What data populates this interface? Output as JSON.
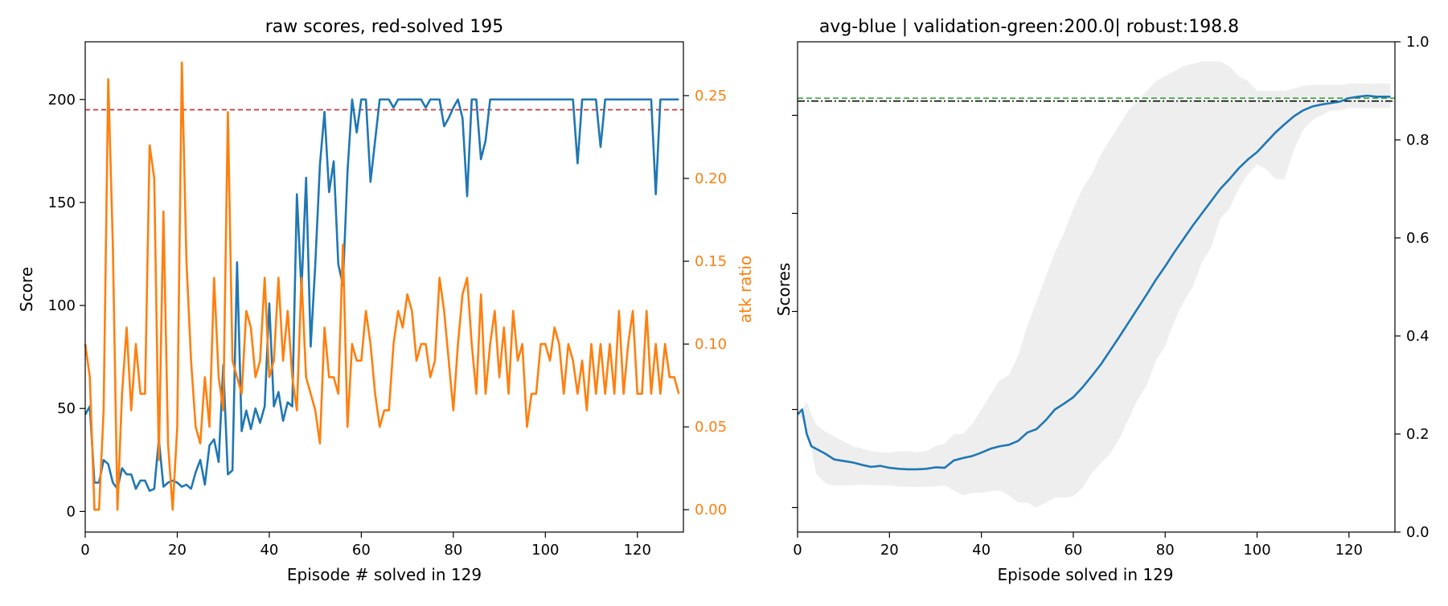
{
  "chart_data": [
    {
      "type": "line",
      "title": "raw scores, red-solved 195",
      "xlabel": "Episode # solved in 129",
      "ylabel": "Score",
      "y2label": "atk ratio",
      "xlim": [
        0,
        130
      ],
      "ylim": [
        -10,
        228
      ],
      "y2lim": [
        -0.0135,
        0.2825
      ],
      "xticks": [
        0,
        20,
        40,
        60,
        80,
        100,
        120
      ],
      "yticks": [
        0,
        50,
        100,
        150,
        200
      ],
      "y2ticks": [
        "0.00",
        "0.05",
        "0.10",
        "0.15",
        "0.20",
        "0.25"
      ],
      "threshold": {
        "value": 195,
        "color": "#d62728",
        "style": "dashed"
      },
      "colors": {
        "score": "#1f77b4",
        "atk_ratio": "#ff7f0e"
      },
      "series": [
        {
          "axis": "left",
          "values": [
            47,
            51,
            14,
            14,
            25,
            23,
            14,
            11,
            21,
            18,
            18,
            11,
            15,
            15,
            10,
            11,
            35,
            12,
            14,
            15,
            14,
            12,
            13,
            11,
            19,
            25,
            13,
            32,
            35,
            24,
            71,
            18,
            20,
            121,
            39,
            49,
            40,
            50,
            43,
            51,
            101,
            51,
            58,
            44,
            53,
            51,
            154,
            107,
            162,
            80,
            120,
            168,
            194,
            155,
            170,
            120,
            110,
            165,
            200,
            184,
            200,
            200,
            160,
            180,
            200,
            200,
            200,
            196,
            200,
            200,
            200,
            200,
            200,
            200,
            196,
            200,
            200,
            200,
            187,
            191,
            196,
            200,
            191,
            153,
            200,
            200,
            171,
            180,
            200,
            200,
            200,
            200,
            200,
            200,
            200,
            200,
            200,
            200,
            200,
            200,
            200,
            200,
            200,
            200,
            200,
            200,
            200,
            169,
            200,
            200,
            200,
            200,
            177,
            200,
            200,
            200,
            200,
            200,
            200,
            200,
            200,
            200,
            200,
            200,
            154,
            200,
            200,
            200,
            200,
            200
          ]
        },
        {
          "axis": "right",
          "values": [
            0.1,
            0.08,
            0.0,
            0.0,
            0.06,
            0.26,
            0.16,
            0.0,
            0.07,
            0.11,
            0.06,
            0.1,
            0.07,
            0.07,
            0.22,
            0.2,
            0.03,
            0.18,
            0.04,
            0.0,
            0.05,
            0.27,
            0.15,
            0.09,
            0.05,
            0.04,
            0.08,
            0.05,
            0.14,
            0.08,
            0.06,
            0.24,
            0.09,
            0.08,
            0.07,
            0.12,
            0.11,
            0.08,
            0.09,
            0.14,
            0.08,
            0.09,
            0.14,
            0.09,
            0.12,
            0.08,
            0.06,
            0.14,
            0.08,
            0.07,
            0.06,
            0.04,
            0.11,
            0.08,
            0.08,
            0.07,
            0.16,
            0.05,
            0.1,
            0.09,
            0.09,
            0.12,
            0.1,
            0.07,
            0.05,
            0.06,
            0.06,
            0.1,
            0.12,
            0.11,
            0.13,
            0.12,
            0.09,
            0.1,
            0.1,
            0.08,
            0.09,
            0.14,
            0.12,
            0.09,
            0.06,
            0.1,
            0.13,
            0.14,
            0.1,
            0.07,
            0.13,
            0.07,
            0.1,
            0.12,
            0.08,
            0.11,
            0.07,
            0.12,
            0.09,
            0.1,
            0.05,
            0.07,
            0.07,
            0.1,
            0.1,
            0.09,
            0.11,
            0.1,
            0.07,
            0.1,
            0.09,
            0.07,
            0.09,
            0.06,
            0.1,
            0.07,
            0.1,
            0.07,
            0.1,
            0.07,
            0.12,
            0.07,
            0.1,
            0.12,
            0.07,
            0.07,
            0.12,
            0.07,
            0.1,
            0.07,
            0.1,
            0.08,
            0.08,
            0.07
          ]
        }
      ]
    },
    {
      "type": "line",
      "title": "avg-blue | validation-green:200.0| robust:198.8",
      "xlabel": "Episode solved in 129",
      "ylabel": "Scores",
      "xlim": [
        0,
        130
      ],
      "ylim": [
        0,
        1
      ],
      "y2ticks": [
        "0.0",
        "0.2",
        "0.4",
        "0.6",
        "0.8",
        "1.0"
      ],
      "xticks": [
        0,
        20,
        40,
        60,
        80,
        100,
        120
      ],
      "reference_lines": [
        {
          "name": "validation",
          "value": 0.885,
          "color": "#2ca02c",
          "style": "dashed"
        },
        {
          "name": "robust",
          "value": 0.879,
          "color": "#000000",
          "style": "dashdot"
        }
      ],
      "colors": {
        "avg": "#1f77b4",
        "band": "#eeeeee"
      },
      "series": [
        {
          "name": "avg",
          "x": [
            0,
            1,
            2,
            3,
            4,
            6,
            8,
            10,
            12,
            14,
            16,
            18,
            20,
            22,
            24,
            26,
            28,
            30,
            32,
            34,
            36,
            38,
            40,
            42,
            44,
            46,
            48,
            50,
            52,
            54,
            56,
            58,
            60,
            62,
            64,
            66,
            68,
            70,
            72,
            74,
            76,
            78,
            80,
            82,
            84,
            86,
            88,
            90,
            92,
            94,
            96,
            98,
            100,
            102,
            104,
            106,
            108,
            110,
            112,
            114,
            116,
            118,
            120,
            122,
            124,
            126,
            128,
            129
          ],
          "values": [
            0.24,
            0.25,
            0.2,
            0.175,
            0.17,
            0.16,
            0.148,
            0.145,
            0.142,
            0.137,
            0.133,
            0.135,
            0.131,
            0.129,
            0.128,
            0.128,
            0.129,
            0.132,
            0.131,
            0.146,
            0.151,
            0.155,
            0.162,
            0.17,
            0.175,
            0.178,
            0.186,
            0.203,
            0.21,
            0.228,
            0.25,
            0.262,
            0.275,
            0.295,
            0.318,
            0.342,
            0.37,
            0.398,
            0.427,
            0.456,
            0.485,
            0.515,
            0.542,
            0.571,
            0.598,
            0.625,
            0.65,
            0.675,
            0.7,
            0.72,
            0.742,
            0.76,
            0.775,
            0.795,
            0.815,
            0.832,
            0.848,
            0.86,
            0.868,
            0.872,
            0.875,
            0.878,
            0.885,
            0.888,
            0.89,
            0.888,
            0.888,
            0.888
          ],
          "lower": [
            0.24,
            0.23,
            0.2,
            0.17,
            0.12,
            0.1,
            0.095,
            0.095,
            0.095,
            0.097,
            0.096,
            0.095,
            0.095,
            0.093,
            0.092,
            0.092,
            0.093,
            0.093,
            0.095,
            0.085,
            0.075,
            0.08,
            0.08,
            0.083,
            0.085,
            0.075,
            0.06,
            0.06,
            0.05,
            0.06,
            0.07,
            0.07,
            0.073,
            0.09,
            0.12,
            0.14,
            0.16,
            0.19,
            0.23,
            0.27,
            0.3,
            0.35,
            0.38,
            0.43,
            0.47,
            0.5,
            0.55,
            0.58,
            0.64,
            0.66,
            0.7,
            0.73,
            0.75,
            0.74,
            0.72,
            0.72,
            0.78,
            0.82,
            0.84,
            0.85,
            0.86,
            0.86,
            0.865,
            0.865,
            0.865,
            0.865,
            0.865,
            0.865
          ],
          "upper": [
            0.24,
            0.25,
            0.265,
            0.24,
            0.22,
            0.205,
            0.195,
            0.185,
            0.175,
            0.17,
            0.165,
            0.163,
            0.162,
            0.165,
            0.165,
            0.163,
            0.165,
            0.175,
            0.18,
            0.2,
            0.2,
            0.22,
            0.25,
            0.28,
            0.31,
            0.32,
            0.36,
            0.42,
            0.47,
            0.52,
            0.57,
            0.61,
            0.66,
            0.7,
            0.73,
            0.77,
            0.8,
            0.83,
            0.86,
            0.88,
            0.9,
            0.92,
            0.93,
            0.94,
            0.95,
            0.955,
            0.96,
            0.96,
            0.96,
            0.95,
            0.93,
            0.92,
            0.9,
            0.9,
            0.9,
            0.9,
            0.905,
            0.91,
            0.912,
            0.913,
            0.912,
            0.912,
            0.915,
            0.915,
            0.915,
            0.915,
            0.915,
            0.915
          ]
        }
      ]
    }
  ]
}
